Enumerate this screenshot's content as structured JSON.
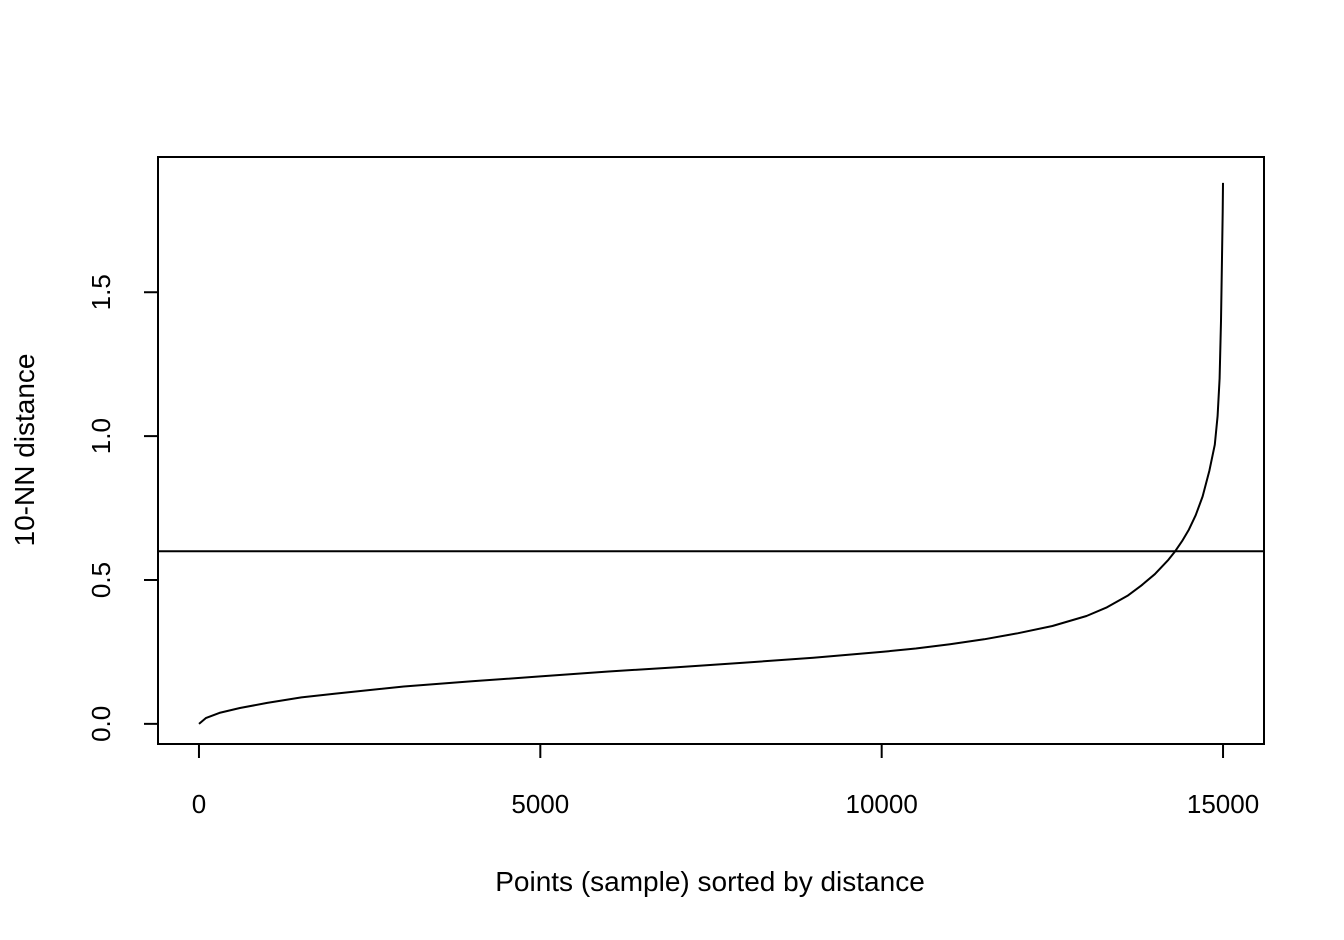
{
  "chart_data": {
    "type": "line",
    "title": "",
    "xlabel": "Points (sample) sorted by distance",
    "ylabel": "10-NN distance",
    "xlim": [
      -600,
      15600
    ],
    "ylim": [
      -0.07,
      1.97
    ],
    "x_ticks": [
      0,
      5000,
      10000,
      15000
    ],
    "x_tick_labels": [
      "0",
      "5000",
      "10000",
      "15000"
    ],
    "y_ticks": [
      0.0,
      0.5,
      1.0,
      1.5
    ],
    "y_tick_labels": [
      "0.0",
      "0.5",
      "1.0",
      "1.5"
    ],
    "grid": false,
    "legend": "none",
    "series": [
      {
        "x": [
          0,
          100,
          300,
          600,
          1000,
          1500,
          2000,
          3000,
          4000,
          5000,
          6000,
          7000,
          8000,
          9000,
          10000,
          10500,
          11000,
          11500,
          12000,
          12500,
          13000,
          13300,
          13600,
          13800,
          14000,
          14200,
          14300,
          14400,
          14500,
          14600,
          14700,
          14800,
          14880,
          14920,
          14950,
          14970,
          14985,
          14995,
          15000
        ],
        "y": [
          0.0,
          0.02,
          0.038,
          0.055,
          0.073,
          0.092,
          0.105,
          0.13,
          0.148,
          0.165,
          0.182,
          0.197,
          0.213,
          0.23,
          0.25,
          0.262,
          0.277,
          0.294,
          0.315,
          0.34,
          0.375,
          0.405,
          0.445,
          0.48,
          0.52,
          0.57,
          0.6,
          0.635,
          0.675,
          0.725,
          0.79,
          0.88,
          0.97,
          1.07,
          1.2,
          1.4,
          1.62,
          1.78,
          1.88
        ]
      }
    ],
    "reference_lines": [
      {
        "orientation": "horizontal",
        "y": 0.6
      }
    ]
  }
}
